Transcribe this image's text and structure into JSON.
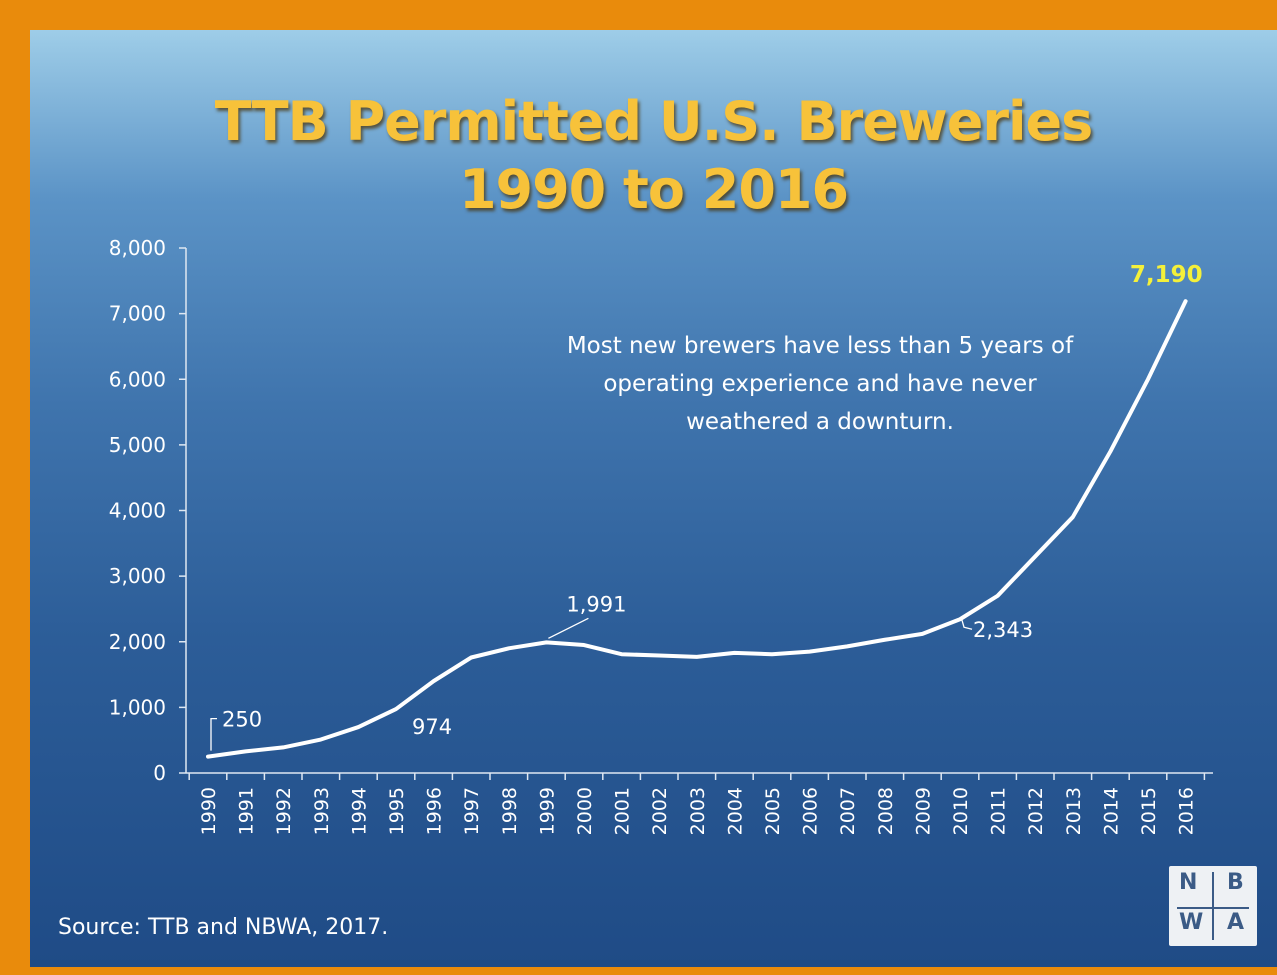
{
  "title_line1": "TTB Permitted U.S. Breweries",
  "title_line2": "1990 to 2016",
  "annotation": "Most new brewers have less than 5 years of operating experience and have never weathered a downturn.",
  "source": "Source: TTB and NBWA, 2017.",
  "logo": {
    "n": "N",
    "b": "B",
    "w": "W",
    "a": "A"
  },
  "colors": {
    "line": "#ffffff",
    "highlight": "#f4f03a",
    "title": "#f7c23a"
  },
  "chart_data": {
    "type": "line",
    "x": [
      "1990",
      "1991",
      "1992",
      "1993",
      "1994",
      "1995",
      "1996",
      "1997",
      "1998",
      "1999",
      "2000",
      "2001",
      "2002",
      "2003",
      "2004",
      "2005",
      "2006",
      "2007",
      "2008",
      "2009",
      "2010",
      "2011",
      "2012",
      "2013",
      "2014",
      "2015",
      "2016"
    ],
    "values": [
      250,
      330,
      390,
      510,
      700,
      974,
      1400,
      1760,
      1900,
      1991,
      1950,
      1810,
      1790,
      1770,
      1830,
      1810,
      1850,
      1930,
      2030,
      2120,
      2343,
      2700,
      3300,
      3900,
      4900,
      6000,
      7190
    ],
    "ylim": [
      0,
      8000
    ],
    "yticks": [
      0,
      1000,
      2000,
      3000,
      4000,
      5000,
      6000,
      7000,
      8000
    ],
    "ytick_labels": [
      "0",
      "1,000",
      "2,000",
      "3,000",
      "4,000",
      "5,000",
      "6,000",
      "7,000",
      "8,000"
    ],
    "data_labels": [
      {
        "index": 0,
        "text": "250"
      },
      {
        "index": 5,
        "text": "974"
      },
      {
        "index": 9,
        "text": "1,991"
      },
      {
        "index": 20,
        "text": "2,343"
      },
      {
        "index": 26,
        "text": "7,190"
      }
    ],
    "grid": false,
    "legend": "none"
  }
}
